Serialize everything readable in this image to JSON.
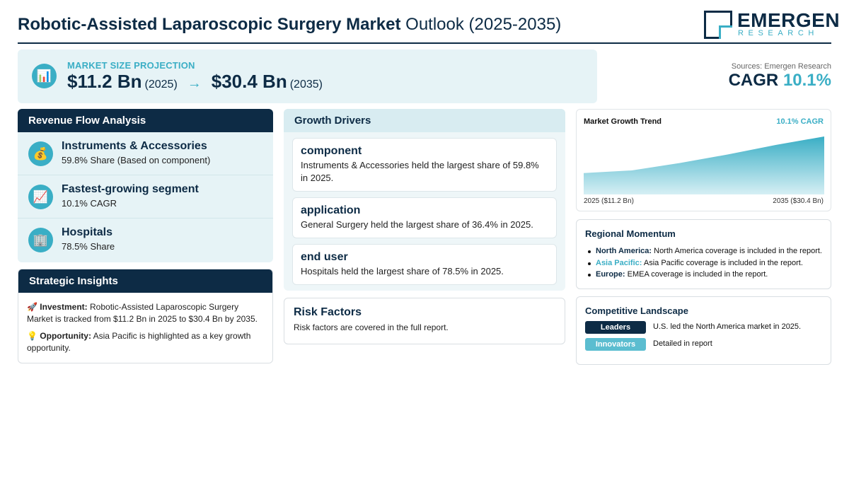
{
  "header": {
    "title_bold": "Robotic-Assisted Laparoscopic Surgery Market",
    "title_rest": "Outlook (2025-2035)",
    "logo_name": "EMERGEN",
    "logo_sub": "RESEARCH"
  },
  "projection": {
    "icon": "bar-chart-icon",
    "label": "MARKET SIZE PROJECTION",
    "start_value": "$11.2 Bn",
    "start_year": "(2025)",
    "arrow": "→",
    "end_value": "$30.4 Bn",
    "end_year": "(2035)"
  },
  "sources": {
    "text": "Sources: Emergen Research",
    "cagr_label": "CAGR",
    "cagr_value": "10.1%"
  },
  "revenue": {
    "heading": "Revenue Flow Analysis",
    "items": [
      {
        "icon": "money-bag-icon",
        "title": "Instruments & Accessories",
        "subtitle": "59.8% Share (Based on component)"
      },
      {
        "icon": "chart-increasing-icon",
        "title": "Fastest-growing segment",
        "subtitle": "10.1% CAGR"
      },
      {
        "icon": "hospital-icon",
        "title": "Hospitals",
        "subtitle": "78.5% Share"
      }
    ]
  },
  "insights": {
    "heading": "Strategic Insights",
    "investment_label": "Investment:",
    "investment_text": "Robotic-Assisted Laparoscopic Surgery Market is tracked from $11.2 Bn in 2025 to $30.4 Bn by 2035.",
    "opportunity_label": "Opportunity:",
    "opportunity_text": "Asia Pacific is highlighted as a key growth opportunity."
  },
  "drivers": {
    "heading": "Growth Drivers",
    "items": [
      {
        "title": "component",
        "description": "Instruments & Accessories held the largest share of 59.8% in 2025."
      },
      {
        "title": "application",
        "description": "General Surgery held the largest share of 36.4% in 2025."
      },
      {
        "title": "end user",
        "description": "Hospitals held the largest share of 78.5% in 2025."
      }
    ]
  },
  "risk": {
    "heading": "Risk Factors",
    "description": "Risk factors are covered in the full report."
  },
  "trend": {
    "title": "Market Growth Trend",
    "cagr_label": "10.1% CAGR",
    "start_label": "2025 ($11.2 Bn)",
    "end_label": "2035 ($30.4 Bn)",
    "colors": {
      "fill_top": "#3aaec5",
      "fill_bottom": "#d6eff4"
    }
  },
  "chart_data": {
    "type": "area",
    "x": [
      2025,
      2027,
      2029,
      2031,
      2033,
      2035
    ],
    "values": [
      11.2,
      12.6,
      16.5,
      21.0,
      26.0,
      30.4
    ],
    "title": "Market Growth Trend",
    "xlabel": "",
    "ylabel": "",
    "ylim": [
      0,
      30.4
    ],
    "grid": false
  },
  "regional": {
    "heading": "Regional Momentum",
    "items": [
      {
        "name": "North America:",
        "text": "North America coverage is included in the report.",
        "accent": false
      },
      {
        "name": "Asia Pacific:",
        "text": "Asia Pacific coverage is included in the report.",
        "accent": true
      },
      {
        "name": "Europe:",
        "text": "EMEA coverage is included in the report.",
        "accent": false
      }
    ]
  },
  "competitive": {
    "heading": "Competitive Landscape",
    "rows": [
      {
        "badge": "Leaders",
        "text": "U.S. led the North America market in 2025.",
        "color": "#0d2b45"
      },
      {
        "badge": "Innovators",
        "text": "Detailed in report",
        "color": "#5bbdd0"
      }
    ]
  },
  "colors": {
    "navy": "#0d2b45",
    "accent": "#3aaec5",
    "panel_bg": "#e6f3f6"
  }
}
